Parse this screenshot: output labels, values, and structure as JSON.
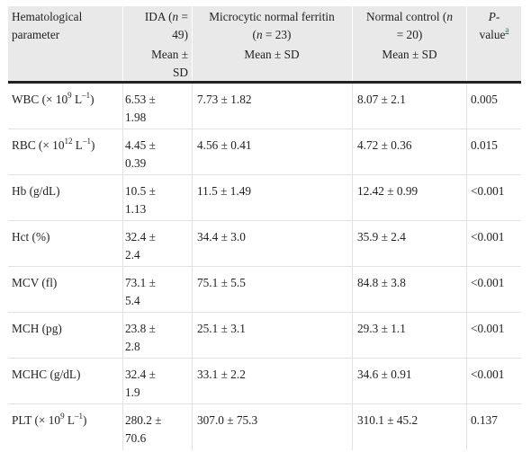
{
  "header": {
    "col1_line1": "Hematological",
    "col1_line2": "parameter",
    "col2_a": "IDA (",
    "col2_n": "n",
    "col2_b": " =",
    "col2_line2": "49)",
    "col3_a": "Microcytic normal ferritin",
    "col3_line2_a": "(",
    "col3_n": "n",
    "col3_line2_b": " = 23)",
    "col4_a": "Normal control (",
    "col4_n": "n",
    "col4_line2": "= 20)",
    "col5_p": "P",
    "col5_dash": "-",
    "col5_value": "value",
    "col5_note": "a",
    "sub_col2_line1": "Mean ±",
    "sub_col2_line2": "SD",
    "sub_col3": "Mean ± SD",
    "sub_col4": "Mean ± SD"
  },
  "rows": [
    {
      "p_pre": "WBC (× 10",
      "p_sup": "9",
      "p_post": " L",
      "p_sup2": "–1",
      "p_end": ")",
      "ida_1": "6.53 ±",
      "ida_2": "1.98",
      "mnf": "7.73 ± 1.82",
      "nc": "8.07 ± 2.1",
      "pval": "0.005"
    },
    {
      "p_pre": "RBC (× 10",
      "p_sup": "12",
      "p_post": " L",
      "p_sup2": "–1",
      "p_end": ")",
      "ida_1": "4.45 ±",
      "ida_2": "0.39",
      "mnf": "4.56 ± 0.41",
      "nc": "4.72 ± 0.36",
      "pval": "0.015"
    },
    {
      "p_pre": "Hb (g/dL)",
      "ida_1": "10.5 ±",
      "ida_2": "1.13",
      "mnf": "11.5 ± 1.49",
      "nc": "12.42 ± 0.99",
      "pval": "<0.001"
    },
    {
      "p_pre": "Hct (%)",
      "ida_1": "32.4 ±",
      "ida_2": "2.4",
      "mnf": "34.4 ± 3.0",
      "nc": "35.9 ± 2.4",
      "pval": "<0.001"
    },
    {
      "p_pre": "MCV (fl)",
      "ida_1": "73.1 ±",
      "ida_2": "5.4",
      "mnf": "75.1 ± 5.5",
      "nc": "84.8 ± 3.8",
      "pval": "<0.001"
    },
    {
      "p_pre": "MCH (pg)",
      "ida_1": "23.8 ±",
      "ida_2": "2.8",
      "mnf": "25.1 ± 3.1",
      "nc": "29.3 ± 1.1",
      "pval": "<0.001"
    },
    {
      "p_pre": "MCHC (g/dL)",
      "ida_1": "32.4 ±",
      "ida_2": "1.9",
      "mnf": "33.1 ± 2.2",
      "nc": "34.6 ± 0.91",
      "pval": "<0.001"
    },
    {
      "p_pre": "PLT (× 10",
      "p_sup": "9",
      "p_post": " L",
      "p_sup2": "–1",
      "p_end": ")",
      "ida_1": "280.2 ±",
      "ida_2": "70.6",
      "mnf": "307.0 ± 75.3",
      "nc": "310.1 ± 45.2",
      "pval": "0.137"
    }
  ]
}
